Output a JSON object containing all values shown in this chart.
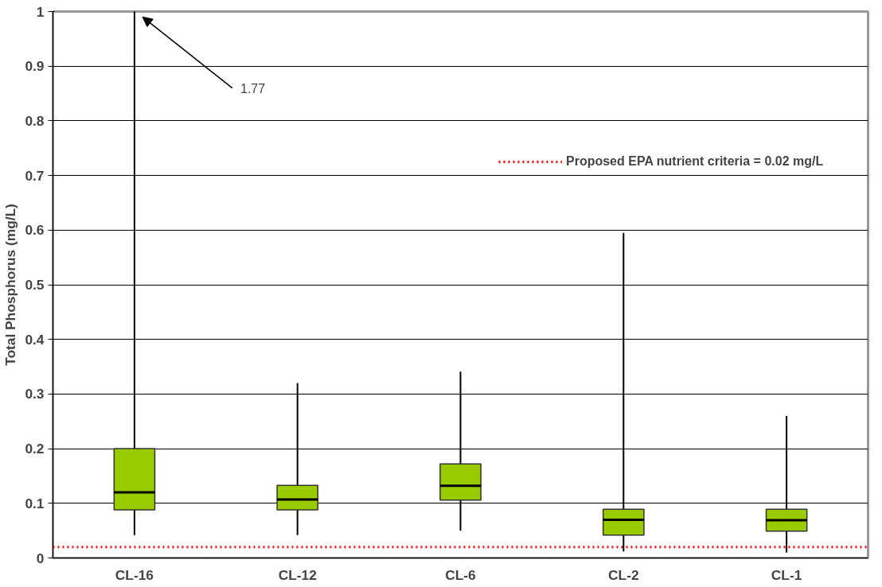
{
  "chart_data": {
    "type": "box",
    "ylabel": "Total Phosphorus (mg/L)",
    "categories": [
      "CL-16",
      "CL-12",
      "CL-6",
      "CL-2",
      "CL-1"
    ],
    "boxes": [
      {
        "low": 0.042,
        "q1": 0.088,
        "median": 0.12,
        "q3": 0.2,
        "high": 1.77
      },
      {
        "low": 0.042,
        "q1": 0.088,
        "median": 0.107,
        "q3": 0.133,
        "high": 0.32
      },
      {
        "low": 0.05,
        "q1": 0.106,
        "median": 0.132,
        "q3": 0.172,
        "high": 0.341
      },
      {
        "low": 0.012,
        "q1": 0.042,
        "median": 0.07,
        "q3": 0.089,
        "high": 0.595
      },
      {
        "low": 0.01,
        "q1": 0.049,
        "median": 0.069,
        "q3": 0.089,
        "high": 0.26
      }
    ],
    "color": "#99cc00",
    "ylim": [
      0,
      1
    ],
    "yticks": [
      0,
      0.1,
      0.2,
      0.3,
      0.4,
      0.5,
      0.6,
      0.7,
      0.8,
      0.9,
      1
    ],
    "grid": "y",
    "legend": "top right",
    "ref_lines": [
      {
        "axis": "y",
        "value": 0.02,
        "label": "Proposed EPA nutrient criteria = 0.02 mg/L",
        "color": "#ff0000",
        "line_style": "dotted"
      }
    ],
    "annotations": [
      "1.77"
    ]
  }
}
